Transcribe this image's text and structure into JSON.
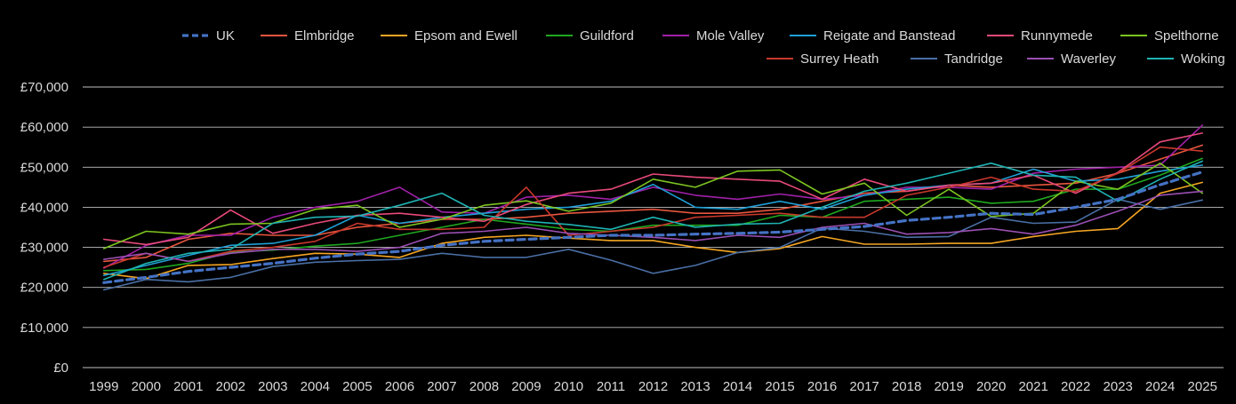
{
  "chart_data": {
    "type": "line",
    "title": "",
    "xlabel": "",
    "ylabel": "",
    "x": [
      "1999",
      "2000",
      "2001",
      "2002",
      "2003",
      "2004",
      "2005",
      "2006",
      "2007",
      "2008",
      "2009",
      "2010",
      "2011",
      "2012",
      "2013",
      "2014",
      "2015",
      "2016",
      "2017",
      "2018",
      "2019",
      "2020",
      "2021",
      "2022",
      "2023",
      "2024",
      "2025"
    ],
    "y_ticks": [
      0,
      10000,
      20000,
      30000,
      40000,
      50000,
      60000,
      70000
    ],
    "y_tick_labels": [
      "£0",
      "£10,000",
      "£20,000",
      "£30,000",
      "£40,000",
      "£50,000",
      "£60,000",
      "£70,000"
    ],
    "ylim": [
      0,
      70000
    ],
    "grid": true,
    "legend_position": "top-right",
    "series": [
      {
        "name": "UK",
        "color": "#4472c4",
        "dashed": true,
        "values": [
          21200,
          22500,
          24000,
          25000,
          26000,
          27300,
          28300,
          29000,
          30500,
          31500,
          32000,
          32500,
          33000,
          33000,
          33300,
          33500,
          33800,
          34500,
          35200,
          36700,
          37500,
          38500,
          38200,
          40000,
          42000,
          45600,
          48800
        ]
      },
      {
        "name": "Elmbridge",
        "color": "#e8563f",
        "dashed": false,
        "values": [
          26500,
          27500,
          32000,
          33500,
          33000,
          33000,
          35000,
          36000,
          37000,
          37000,
          37500,
          38500,
          39000,
          39500,
          38500,
          38500,
          39500,
          41500,
          43500,
          44000,
          45500,
          45000,
          45500,
          46000,
          48500,
          52000,
          55500
        ]
      },
      {
        "name": "Epsom and Ewell",
        "color": "#f5a623",
        "dashed": false,
        "values": [
          23500,
          22200,
          25500,
          25700,
          27200,
          28500,
          28300,
          27500,
          31000,
          32500,
          33000,
          32300,
          31700,
          31700,
          30000,
          28700,
          29700,
          32700,
          30800,
          30800,
          31000,
          31000,
          32700,
          34000,
          34700,
          43500,
          46200
        ]
      },
      {
        "name": "Guildford",
        "color": "#1fa81f",
        "dashed": false,
        "values": [
          24200,
          24500,
          26000,
          28800,
          29300,
          30300,
          31000,
          33000,
          35000,
          37000,
          35800,
          34500,
          34000,
          35500,
          35500,
          35500,
          38000,
          37500,
          41500,
          42000,
          42500,
          41000,
          41500,
          44500,
          44500,
          48000,
          52200
        ]
      },
      {
        "name": "Mole Valley",
        "color": "#a020a8",
        "dashed": false,
        "values": [
          24800,
          30500,
          33000,
          33000,
          37500,
          40000,
          41500,
          45000,
          38800,
          38500,
          42500,
          43000,
          42000,
          45000,
          43000,
          42000,
          43300,
          42000,
          43000,
          45000,
          45000,
          44500,
          48500,
          49500,
          50000,
          50500,
          60500
        ]
      },
      {
        "name": "Reigate and Banstead",
        "color": "#1f9fd6",
        "dashed": false,
        "values": [
          23000,
          25500,
          28000,
          30500,
          31000,
          33000,
          38000,
          36000,
          37500,
          38500,
          39500,
          40000,
          41500,
          45700,
          40000,
          39500,
          41500,
          39500,
          43000,
          44500,
          45500,
          46000,
          49500,
          46500,
          47000,
          49000,
          50500
        ]
      },
      {
        "name": "Runnymede",
        "color": "#e84a7a",
        "dashed": false,
        "values": [
          32000,
          30700,
          32500,
          39300,
          33500,
          36000,
          38000,
          38500,
          37500,
          36500,
          40700,
          43500,
          44500,
          48300,
          47500,
          47000,
          46500,
          42000,
          47000,
          44000,
          45500,
          46000,
          48000,
          43500,
          48700,
          56300,
          58500
        ]
      },
      {
        "name": "Spelthorne",
        "color": "#7cc420",
        "dashed": false,
        "values": [
          29700,
          34000,
          33300,
          35800,
          36000,
          39500,
          40500,
          35000,
          37000,
          40500,
          41600,
          39000,
          41000,
          47000,
          45000,
          49000,
          49300,
          43300,
          46000,
          38000,
          44500,
          37700,
          38500,
          46500,
          44500,
          51000,
          43500
        ]
      },
      {
        "name": "Surrey Heath",
        "color": "#c8382c",
        "dashed": false,
        "values": [
          25000,
          28500,
          26500,
          29000,
          30000,
          31500,
          36000,
          34500,
          34500,
          35000,
          45000,
          33000,
          34000,
          35000,
          37500,
          38000,
          38500,
          37500,
          37500,
          43000,
          45000,
          47500,
          44500,
          44000,
          48500,
          55000,
          54000
        ]
      },
      {
        "name": "Tandridge",
        "color": "#4a6fa5",
        "dashed": false,
        "values": [
          19400,
          22000,
          21400,
          22500,
          25200,
          26300,
          26700,
          27000,
          28500,
          27500,
          27500,
          29500,
          26800,
          23500,
          25500,
          28700,
          30000,
          34800,
          34000,
          32500,
          32700,
          37500,
          36000,
          36300,
          42000,
          39500,
          41800
        ]
      },
      {
        "name": "Waverley",
        "color": "#9a4fb3",
        "dashed": false,
        "values": [
          27000,
          28500,
          26500,
          28500,
          29500,
          29500,
          29000,
          30000,
          33500,
          34000,
          35000,
          33500,
          33000,
          32500,
          31700,
          33000,
          32500,
          35000,
          36000,
          33300,
          33700,
          34700,
          33300,
          35500,
          39000,
          43000,
          44000
        ]
      },
      {
        "name": "Woking",
        "color": "#1fb3b3",
        "dashed": false,
        "values": [
          22000,
          26000,
          28500,
          29500,
          36000,
          37500,
          37800,
          40500,
          43500,
          38000,
          36500,
          35700,
          34500,
          37500,
          35000,
          35800,
          36000,
          40000,
          44000,
          46000,
          48500,
          51000,
          48000,
          47500,
          41500,
          47000,
          51500
        ]
      }
    ]
  }
}
